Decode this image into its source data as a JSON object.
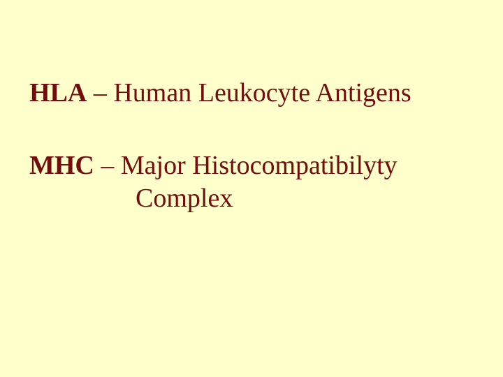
{
  "background_color": "#ffffcc",
  "text_color": "#730d0d",
  "font_family": "Times New Roman",
  "font_size_pt": 38,
  "lines": {
    "hla_abbr": "HLA",
    "hla_rest": " – Human Leukocyte Antigens",
    "mhc_abbr": "MHC",
    "mhc_rest": " – Major Histocompatibilyty",
    "mhc_cont": "Complex"
  }
}
